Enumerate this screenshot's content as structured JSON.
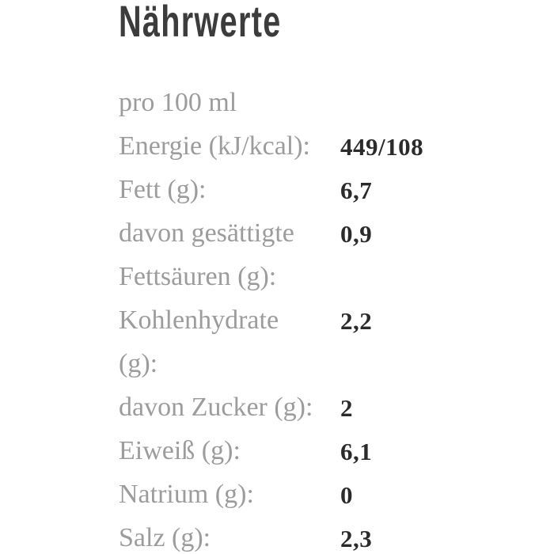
{
  "page": {
    "background_color": "#ffffff",
    "title_color": "#3c3c3c",
    "label_color": "#9c9c9c",
    "value_color": "#2b2b2b"
  },
  "title": "Nährwerte",
  "table": {
    "header": "pro 100 ml",
    "rows": [
      {
        "label": "Energie (kJ/kcal):",
        "value": "449/108"
      },
      {
        "label": "Fett (g):",
        "value": "6,7"
      },
      {
        "label": "davon gesättigte",
        "value": "0,9"
      },
      {
        "label": "Fettsäuren (g):",
        "value": ""
      },
      {
        "label": "Kohlenhydrate",
        "value": "2,2"
      },
      {
        "label": "(g):",
        "value": ""
      },
      {
        "label": "davon Zucker (g):",
        "value": "2"
      },
      {
        "label": "Eiweiß (g):",
        "value": "6,1"
      },
      {
        "label": "Natrium (g):",
        "value": "0"
      },
      {
        "label": "Salz (g):",
        "value": "2,3"
      }
    ]
  }
}
